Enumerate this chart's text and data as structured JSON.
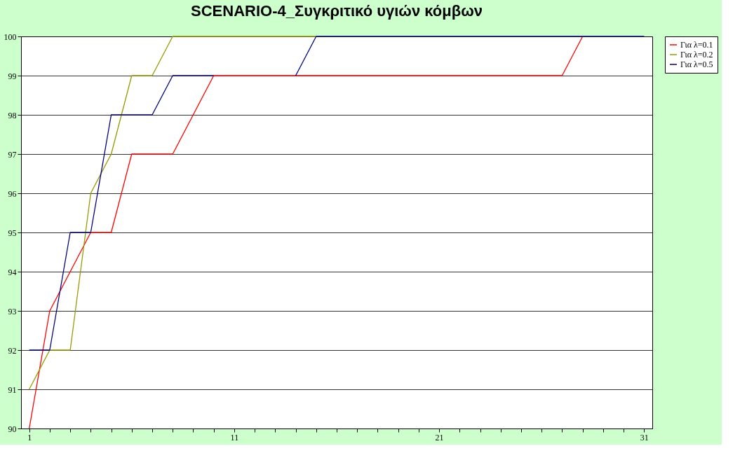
{
  "chart_data": {
    "type": "line",
    "title": "SCENARIO-4_Συγκριτικό υγιών κόμβων",
    "categories": [
      "1",
      null,
      null,
      null,
      null,
      null,
      null,
      null,
      null,
      null,
      "11",
      null,
      null,
      null,
      null,
      null,
      null,
      null,
      null,
      null,
      "21",
      null,
      null,
      null,
      null,
      null,
      null,
      null,
      null,
      null,
      "31"
    ],
    "ylim": [
      90,
      100
    ],
    "yticks": [
      90,
      91,
      92,
      93,
      94,
      95,
      96,
      97,
      98,
      99,
      100
    ],
    "grid": "y",
    "legend": "right",
    "marker": "none",
    "line_style": "solid",
    "series": [
      {
        "name": "Για λ=0.1",
        "color": "#ff0000",
        "values": [
          90,
          93,
          94,
          95,
          95,
          97,
          97,
          97,
          98,
          99,
          99,
          99,
          99,
          99,
          99,
          99,
          99,
          99,
          99,
          99,
          99,
          99,
          99,
          99,
          99,
          99,
          99,
          100,
          null,
          null,
          null
        ]
      },
      {
        "name": "Για λ=0.2",
        "color": "#999900",
        "values": [
          91,
          92,
          92,
          96,
          97,
          99,
          99,
          100,
          100,
          100,
          100,
          100,
          100,
          100,
          100,
          null,
          null,
          null,
          null,
          null,
          null,
          null,
          null,
          null,
          null,
          null,
          null,
          null,
          null,
          null,
          null
        ]
      },
      {
        "name": "Για λ=0.5",
        "color": "#000080",
        "values": [
          92,
          92,
          95,
          95,
          98,
          98,
          98,
          99,
          99,
          99,
          null,
          null,
          null,
          99,
          100,
          100,
          100,
          100,
          100,
          100,
          100,
          100,
          100,
          100,
          100,
          100,
          100,
          100,
          100,
          100,
          100
        ]
      }
    ]
  }
}
